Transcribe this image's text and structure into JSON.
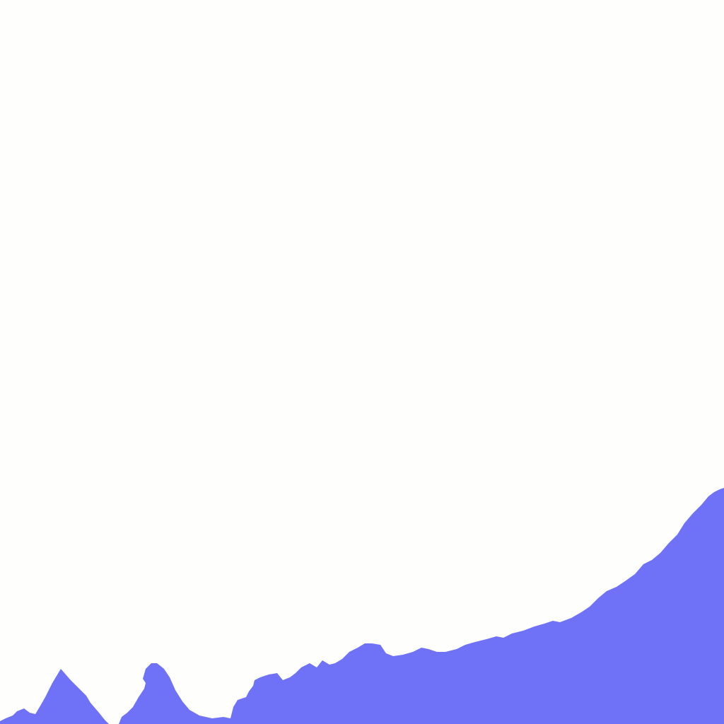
{
  "scene": {
    "background_color": "#fefefd",
    "silhouette_color": "#6f72f6",
    "shape": "mountain-ridge-silhouette"
  }
}
